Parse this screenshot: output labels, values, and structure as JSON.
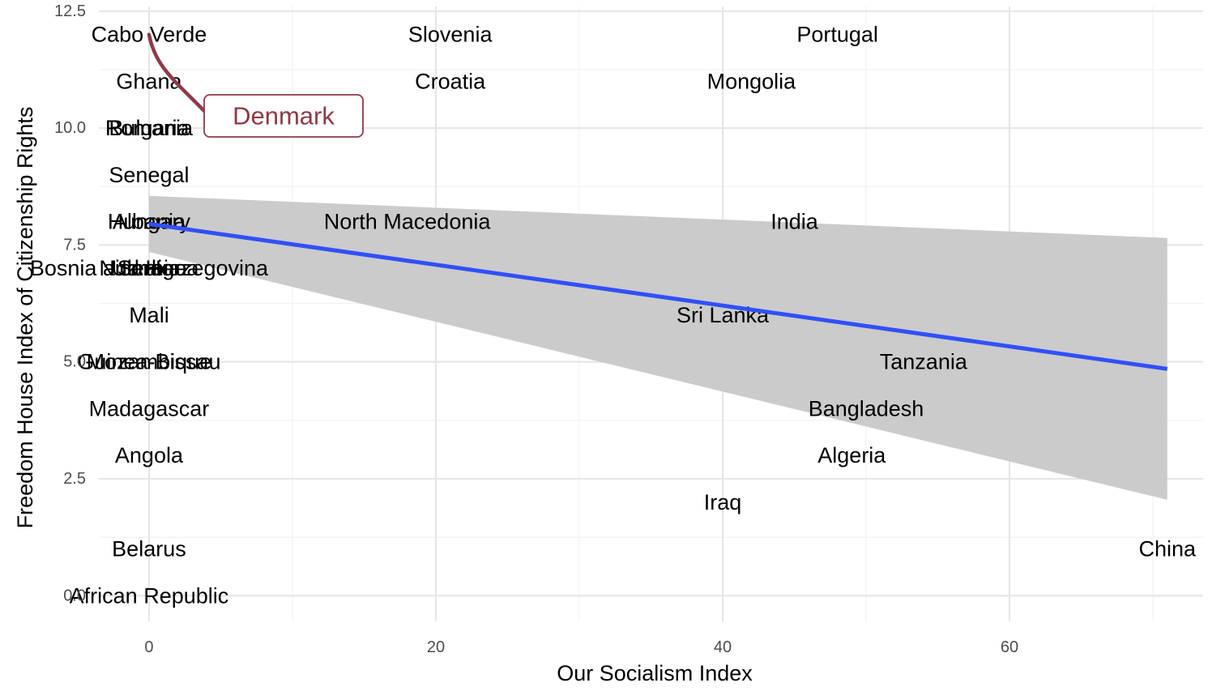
{
  "chart_data": {
    "type": "scatter",
    "title": "",
    "xlabel": "Our Socialism Index",
    "ylabel": "Freedom House Index of Citizenship Rights",
    "xlim": [
      -3.5,
      73.5
    ],
    "ylim": [
      -0.55,
      12.6
    ],
    "x_ticks": [
      0,
      20,
      40,
      60
    ],
    "x_tick_labels": [
      "0",
      "20",
      "40",
      "60"
    ],
    "y_ticks": [
      0,
      2.5,
      5,
      7.5,
      10,
      12.5
    ],
    "y_tick_labels": [
      "0.0",
      "2.5",
      "5.0",
      "7.5",
      "10.0",
      "12.5"
    ],
    "grid": true,
    "colors": {
      "trend_line": "#3050f8",
      "confidence_band": "#c8c8c8",
      "highlight": "#8e3a48",
      "grid_major": "#e6e6e6",
      "grid_minor": "#f2f2f2"
    },
    "trend": {
      "method": "linear",
      "x": [
        0,
        71
      ],
      "y": [
        7.95,
        4.85
      ],
      "ci_lower": [
        7.35,
        2.05
      ],
      "ci_upper": [
        8.55,
        7.65
      ]
    },
    "highlight_point": {
      "label": "Denmark",
      "x": 0,
      "y": 12
    },
    "points": [
      {
        "label": "Cabo Verde",
        "x": 0,
        "y": 12
      },
      {
        "label": "Slovenia",
        "x": 21,
        "y": 12
      },
      {
        "label": "Portugal",
        "x": 48,
        "y": 12
      },
      {
        "label": "Ghana",
        "x": 0,
        "y": 11
      },
      {
        "label": "Croatia",
        "x": 21,
        "y": 11
      },
      {
        "label": "Mongolia",
        "x": 42,
        "y": 11
      },
      {
        "label": "Romania",
        "x": 0,
        "y": 10
      },
      {
        "label": "Bulgaria",
        "x": 0,
        "y": 10
      },
      {
        "label": "Senegal",
        "x": 0,
        "y": 9
      },
      {
        "label": "Hungary",
        "x": 0,
        "y": 8
      },
      {
        "label": "North Macedonia",
        "x": 18,
        "y": 8
      },
      {
        "label": "Albania",
        "x": 0,
        "y": 8
      },
      {
        "label": "India",
        "x": 45,
        "y": 8
      },
      {
        "label": "Serbia",
        "x": 0,
        "y": 7
      },
      {
        "label": "Bosnia and Herzegovina",
        "x": 0,
        "y": 7
      },
      {
        "label": "Nicaragua",
        "x": 0,
        "y": 7
      },
      {
        "label": "Ukraine",
        "x": 0,
        "y": 7
      },
      {
        "label": "Mali",
        "x": 0,
        "y": 6
      },
      {
        "label": "Sri Lanka",
        "x": 40,
        "y": 6
      },
      {
        "label": "Mozambique",
        "x": 0,
        "y": 5
      },
      {
        "label": "Guinea-Bissau",
        "x": 0,
        "y": 5
      },
      {
        "label": "Tanzania",
        "x": 54,
        "y": 5
      },
      {
        "label": "Madagascar",
        "x": 0,
        "y": 4
      },
      {
        "label": "Bangladesh",
        "x": 50,
        "y": 4
      },
      {
        "label": "Angola",
        "x": 0,
        "y": 3
      },
      {
        "label": "Algeria",
        "x": 49,
        "y": 3
      },
      {
        "label": "Iraq",
        "x": 40,
        "y": 2
      },
      {
        "label": "Belarus",
        "x": 0,
        "y": 1
      },
      {
        "label": "China",
        "x": 71,
        "y": 1
      },
      {
        "label": "African Republic",
        "x": 0,
        "y": 0
      }
    ]
  }
}
